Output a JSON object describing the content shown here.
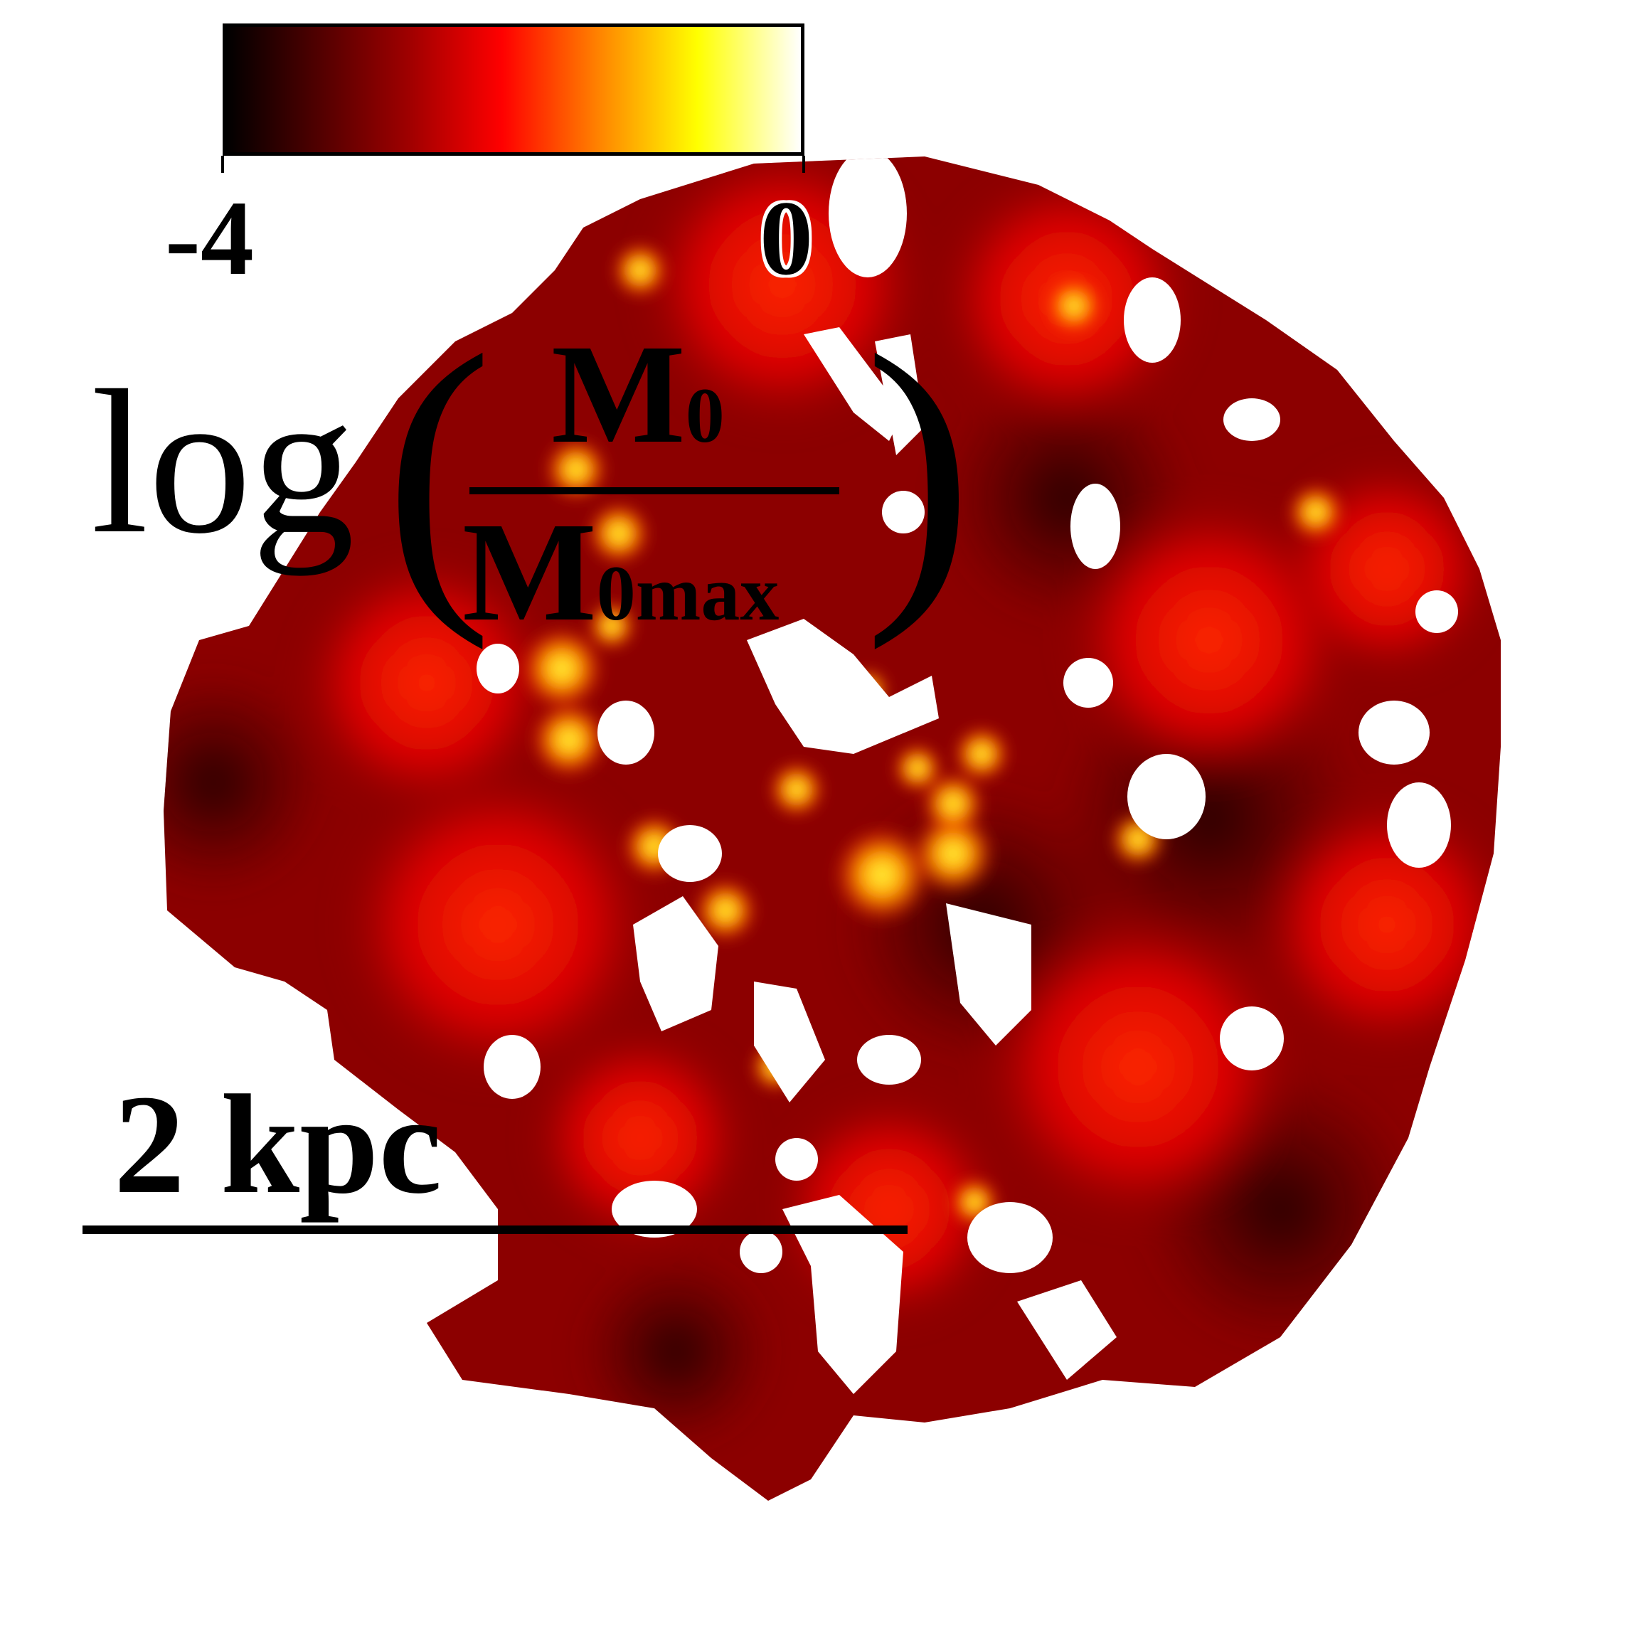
{
  "colorbar": {
    "min_label": "-4",
    "max_label": "0",
    "colormap": "hot",
    "colors": [
      "#000000",
      "#5a0000",
      "#a00000",
      "#ff0000",
      "#ff8c00",
      "#ffff00",
      "#ffffff"
    ]
  },
  "formula": {
    "log": "log",
    "numerator_base": "M",
    "numerator_sub": "0",
    "denominator_base": "M",
    "denominator_sub": "0max"
  },
  "scale": {
    "label": "2 kpc"
  }
}
